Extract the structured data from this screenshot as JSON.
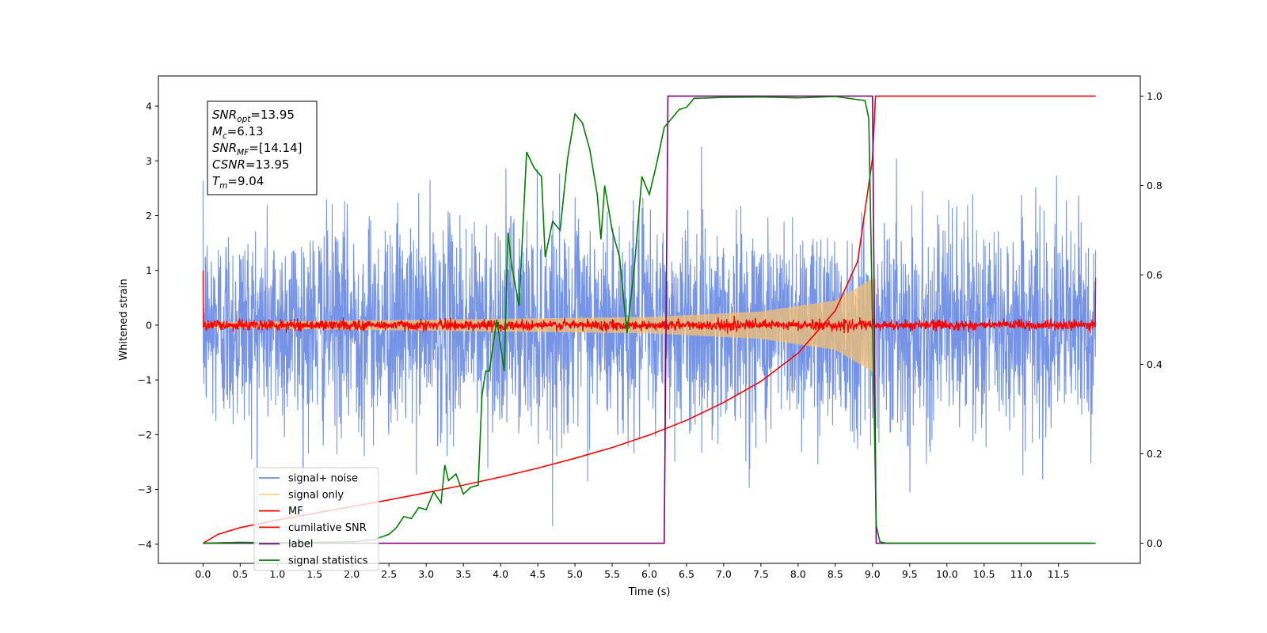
{
  "chart_data": {
    "type": "line",
    "xlabel": "Time (s)",
    "ylabel": "Whitened strain",
    "xlim": [
      -0.6,
      12.6
    ],
    "ylim": [
      -4.35,
      4.55
    ],
    "y2lim": [
      -0.045,
      1.045
    ],
    "x_ticks": [
      0.0,
      0.5,
      1.0,
      1.5,
      2.0,
      2.5,
      3.0,
      3.5,
      4.0,
      4.5,
      5.0,
      5.5,
      6.0,
      6.5,
      7.0,
      7.5,
      8.0,
      8.5,
      9.0,
      9.5,
      10.0,
      10.5,
      11.0,
      11.5
    ],
    "x_tick_labels": [
      "0.0",
      "0.5",
      "1.0",
      "1.5",
      "2.0",
      "2.5",
      "3.0",
      "3.5",
      "4.0",
      "4.5",
      "5.0",
      "5.5",
      "6.0",
      "6.5",
      "7.0",
      "7.5",
      "8.0",
      "8.5",
      "9.0",
      "9.5",
      "10.0",
      "10.5",
      "11.0",
      "11.5"
    ],
    "y_ticks": [
      -4,
      -3,
      -2,
      -1,
      0,
      1,
      2,
      3,
      4
    ],
    "y_tick_labels": [
      "−4",
      "−3",
      "−2",
      "−1",
      "0",
      "1",
      "2",
      "3",
      "4"
    ],
    "y2_ticks": [
      0.0,
      0.2,
      0.4,
      0.6,
      0.8,
      1.0
    ],
    "y2_tick_labels": [
      "0.0",
      "0.2",
      "0.4",
      "0.6",
      "0.8",
      "1.0"
    ],
    "grid": false,
    "legend_position": "lower-left",
    "series": [
      {
        "name": "signal+ noise",
        "color": "#6f8ee6",
        "axis": "left",
        "kind": "noise",
        "x_range": [
          0.0,
          12.0
        ],
        "amplitude_typical": 1.0,
        "amplitude_max": 4.1
      },
      {
        "name": "signal only",
        "color": "#f5c070",
        "axis": "left",
        "kind": "chirp_envelope",
        "x_range": [
          0.0,
          9.04
        ],
        "envelope": [
          [
            0.0,
            0.05
          ],
          [
            6.0,
            0.15
          ],
          [
            7.5,
            0.25
          ],
          [
            8.5,
            0.45
          ],
          [
            9.0,
            0.85
          ]
        ]
      },
      {
        "name": "MF",
        "color": "#ff0000",
        "axis": "left",
        "kind": "noise",
        "x_range": [
          0.0,
          12.0
        ],
        "amplitude_typical": 0.05,
        "amplitude_max": 0.2,
        "edge_values": [
          1.0,
          0.87
        ]
      },
      {
        "name": "cumilative SNR",
        "color": "#ff0000",
        "axis": "right",
        "points": [
          [
            0.0,
            0.0
          ],
          [
            0.2,
            0.02
          ],
          [
            0.5,
            0.035
          ],
          [
            1.0,
            0.052
          ],
          [
            1.5,
            0.067
          ],
          [
            2.0,
            0.082
          ],
          [
            2.5,
            0.097
          ],
          [
            3.0,
            0.113
          ],
          [
            3.5,
            0.13
          ],
          [
            4.0,
            0.148
          ],
          [
            4.5,
            0.168
          ],
          [
            5.0,
            0.19
          ],
          [
            5.5,
            0.214
          ],
          [
            6.0,
            0.242
          ],
          [
            6.5,
            0.275
          ],
          [
            7.0,
            0.315
          ],
          [
            7.5,
            0.362
          ],
          [
            8.0,
            0.425
          ],
          [
            8.5,
            0.52
          ],
          [
            8.8,
            0.63
          ],
          [
            9.0,
            0.86
          ],
          [
            9.04,
            1.0
          ],
          [
            12.0,
            1.0
          ]
        ]
      },
      {
        "name": "label",
        "color": "#800080",
        "axis": "right",
        "points": [
          [
            0.0,
            0.0
          ],
          [
            6.2,
            0.0
          ],
          [
            6.25,
            1.0
          ],
          [
            9.0,
            1.0
          ],
          [
            9.05,
            0.0
          ],
          [
            11.95,
            0.0
          ]
        ]
      },
      {
        "name": "signal statistics",
        "color": "#008000",
        "axis": "right",
        "points": [
          [
            0.0,
            0.0
          ],
          [
            0.5,
            0.002
          ],
          [
            1.0,
            0.001
          ],
          [
            1.5,
            0.002
          ],
          [
            2.0,
            0.003
          ],
          [
            2.3,
            0.008
          ],
          [
            2.5,
            0.02
          ],
          [
            2.6,
            0.035
          ],
          [
            2.7,
            0.06
          ],
          [
            2.8,
            0.055
          ],
          [
            2.9,
            0.08
          ],
          [
            3.0,
            0.075
          ],
          [
            3.1,
            0.115
          ],
          [
            3.2,
            0.09
          ],
          [
            3.25,
            0.175
          ],
          [
            3.3,
            0.14
          ],
          [
            3.4,
            0.155
          ],
          [
            3.5,
            0.11
          ],
          [
            3.6,
            0.125
          ],
          [
            3.7,
            0.13
          ],
          [
            3.75,
            0.33
          ],
          [
            3.8,
            0.385
          ],
          [
            3.85,
            0.385
          ],
          [
            3.95,
            0.5
          ],
          [
            4.05,
            0.385
          ],
          [
            4.1,
            0.695
          ],
          [
            4.15,
            0.62
          ],
          [
            4.25,
            0.53
          ],
          [
            4.35,
            0.875
          ],
          [
            4.45,
            0.84
          ],
          [
            4.55,
            0.82
          ],
          [
            4.6,
            0.64
          ],
          [
            4.7,
            0.72
          ],
          [
            4.8,
            0.7
          ],
          [
            4.9,
            0.86
          ],
          [
            5.0,
            0.96
          ],
          [
            5.1,
            0.94
          ],
          [
            5.2,
            0.88
          ],
          [
            5.3,
            0.78
          ],
          [
            5.35,
            0.68
          ],
          [
            5.4,
            0.8
          ],
          [
            5.5,
            0.7
          ],
          [
            5.6,
            0.64
          ],
          [
            5.7,
            0.47
          ],
          [
            5.8,
            0.62
          ],
          [
            5.9,
            0.82
          ],
          [
            6.0,
            0.78
          ],
          [
            6.1,
            0.85
          ],
          [
            6.2,
            0.93
          ],
          [
            6.3,
            0.95
          ],
          [
            6.4,
            0.97
          ],
          [
            6.5,
            0.975
          ],
          [
            6.6,
            0.995
          ],
          [
            7.0,
            0.997
          ],
          [
            7.5,
            0.998
          ],
          [
            8.0,
            0.996
          ],
          [
            8.5,
            0.999
          ],
          [
            8.9,
            0.99
          ],
          [
            8.95,
            0.95
          ],
          [
            9.0,
            0.5
          ],
          [
            9.05,
            0.04
          ],
          [
            9.1,
            0.003
          ],
          [
            9.2,
            0.0
          ],
          [
            12.0,
            0.0
          ]
        ]
      }
    ],
    "annotations": [
      {
        "base": "SNR",
        "sub": "opt",
        "text": "=13.95"
      },
      {
        "base": "M",
        "sub": "c",
        "text": "=6.13"
      },
      {
        "base": "SNR",
        "sub": "MF",
        "text": "=[14.14]"
      },
      {
        "base": "CSNR",
        "sub": "",
        "text": "=13.95"
      },
      {
        "base": "T",
        "sub": "m",
        "text": "=9.04"
      }
    ]
  }
}
